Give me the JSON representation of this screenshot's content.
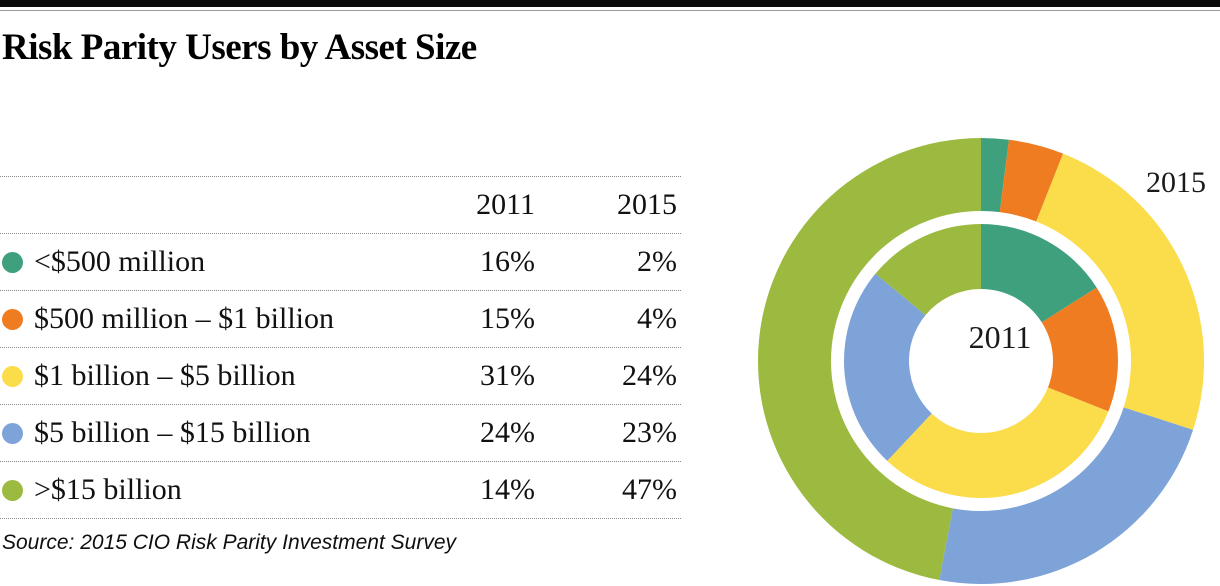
{
  "title": "Risk Parity Users by Asset Size",
  "source": "Source: 2015 CIO Risk Parity Investment Survey",
  "table": {
    "headers": [
      "2011",
      "2015"
    ],
    "rows": [
      {
        "label": "<$500 million",
        "y2011": "16%",
        "y2015": "2%",
        "color": "#3FA07E"
      },
      {
        "label": "$500 million – $1 billion",
        "y2011": "15%",
        "y2015": "4%",
        "color": "#F07C22"
      },
      {
        "label": "$1 billion – $5 billion",
        "y2011": "31%",
        "y2015": "24%",
        "color": "#FBDC4B"
      },
      {
        "label": "$5 billion – $15 billion",
        "y2011": "24%",
        "y2015": "23%",
        "color": "#7EA3D8"
      },
      {
        "label": ">$15 billion",
        "y2011": "14%",
        "y2015": "47%",
        "color": "#9CBA3F"
      }
    ]
  },
  "chart_data": {
    "type": "donut",
    "categories": [
      "<$500 million",
      "$500 million – $1 billion",
      "$1 billion – $5 billion",
      "$5 billion – $15 billion",
      ">$15 billion"
    ],
    "colors": [
      "#3FA07E",
      "#F07C22",
      "#FBDC4B",
      "#7EA3D8",
      "#9CBA3F"
    ],
    "series": [
      {
        "name": "2011",
        "ring": "inner",
        "values": [
          16,
          15,
          31,
          24,
          14
        ]
      },
      {
        "name": "2015",
        "ring": "outer",
        "values": [
          2,
          4,
          24,
          23,
          47
        ]
      }
    ],
    "inner_label": "2011",
    "outer_label": "2015",
    "start_angle_deg": 0,
    "direction": "clockwise",
    "units": "percent",
    "legend_position": "table-left"
  }
}
